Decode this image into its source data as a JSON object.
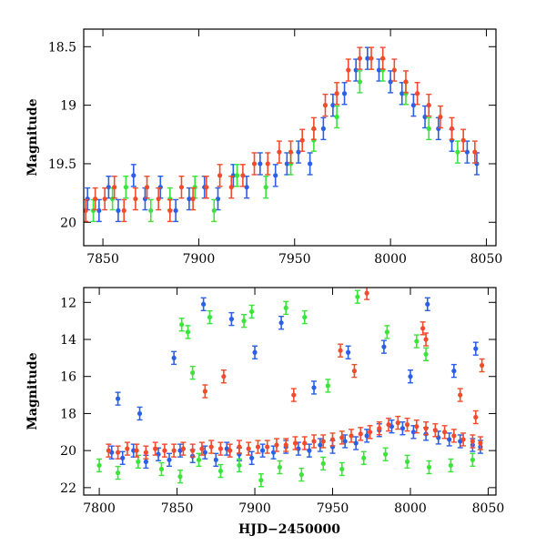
{
  "chart_data": [
    {
      "type": "scatter",
      "panel": "top",
      "xlabel": "",
      "ylabel": "Magnitude",
      "xlim": [
        7840,
        8055
      ],
      "ylim": [
        20.2,
        18.35
      ],
      "y_inverted": true,
      "x_ticks": [
        7850,
        7900,
        7950,
        8000,
        8050
      ],
      "y_ticks": [
        18.5,
        19,
        19.5,
        20
      ],
      "x_tick_labels": [
        "7850",
        "7900",
        "7950",
        "8000",
        "8050"
      ],
      "y_tick_labels": [
        "18.5",
        "19",
        "19.5",
        "20"
      ],
      "error_bars": true,
      "series": [
        {
          "color": "#2a5fe6",
          "x": [
            7842,
            7848,
            7853,
            7858,
            7866,
            7872,
            7880,
            7888,
            7895,
            7903,
            7910,
            7918,
            7925,
            7932,
            7940,
            7946,
            7952,
            7958,
            7965,
            7970,
            7976,
            7982,
            7988,
            7994,
            8000,
            8006,
            8012,
            8018,
            8025,
            8032,
            8040,
            8045
          ],
          "y": [
            19.8,
            19.9,
            19.7,
            19.9,
            19.6,
            19.8,
            19.7,
            19.9,
            19.8,
            19.7,
            19.8,
            19.6,
            19.7,
            19.5,
            19.6,
            19.5,
            19.4,
            19.5,
            19.2,
            19.0,
            18.9,
            18.7,
            18.6,
            18.7,
            18.8,
            18.9,
            19.0,
            19.1,
            19.2,
            19.3,
            19.4,
            19.5
          ]
        },
        {
          "color": "#3be33b",
          "x": [
            7845,
            7855,
            7862,
            7875,
            7885,
            7898,
            7908,
            7920,
            7935,
            7948,
            7960,
            7972,
            7984,
            7996,
            8008,
            8020,
            8035
          ],
          "y": [
            19.9,
            19.8,
            19.7,
            19.9,
            19.8,
            19.7,
            19.9,
            19.6,
            19.7,
            19.5,
            19.3,
            19.1,
            18.8,
            18.7,
            18.9,
            19.2,
            19.4
          ]
        },
        {
          "color": "#f24a2c",
          "x": [
            7841,
            7846,
            7851,
            7856,
            7861,
            7867,
            7873,
            7879,
            7885,
            7891,
            7897,
            7904,
            7911,
            7917,
            7923,
            7929,
            7936,
            7942,
            7948,
            7954,
            7960,
            7966,
            7972,
            7978,
            7984,
            7990,
            7996,
            8002,
            8008,
            8014,
            8020,
            8026,
            8032,
            8038,
            8044
          ],
          "y": [
            19.9,
            19.8,
            19.8,
            19.7,
            19.9,
            19.8,
            19.7,
            19.8,
            19.9,
            19.7,
            19.8,
            19.7,
            19.6,
            19.7,
            19.6,
            19.5,
            19.5,
            19.4,
            19.4,
            19.3,
            19.2,
            19.0,
            18.9,
            18.7,
            18.6,
            18.6,
            18.6,
            18.7,
            18.8,
            18.9,
            19.0,
            19.1,
            19.2,
            19.3,
            19.4
          ]
        }
      ]
    },
    {
      "type": "scatter",
      "panel": "bottom",
      "xlabel": "HJD−2450000",
      "ylabel": "Magnitude",
      "xlim": [
        7790,
        8055
      ],
      "ylim": [
        22.4,
        11.2
      ],
      "y_inverted": true,
      "x_ticks": [
        7800,
        7850,
        7900,
        7950,
        8000,
        8050
      ],
      "y_ticks": [
        12,
        14,
        16,
        18,
        20,
        22
      ],
      "x_tick_labels": [
        "7800",
        "7850",
        "7900",
        "7950",
        "8000",
        "8050"
      ],
      "y_tick_labels": [
        "12",
        "14",
        "16",
        "18",
        "20",
        "22"
      ],
      "error_bars": true,
      "series": [
        {
          "color": "#2a5fe6",
          "x": [
            7808,
            7815,
            7822,
            7830,
            7838,
            7845,
            7852,
            7860,
            7868,
            7875,
            7882,
            7890,
            7898,
            7905,
            7912,
            7920,
            7928,
            7935,
            7942,
            7950,
            7958,
            7965,
            7972,
            7980,
            7988,
            7995,
            8002,
            8010,
            8018,
            8025,
            8032,
            8040,
            8045,
            7812,
            7826,
            7848,
            7867,
            7885,
            7900,
            7917,
            7938,
            7960,
            7983,
            8000,
            8011,
            8028,
            8042
          ],
          "y": [
            20.1,
            20.4,
            20.0,
            20.6,
            20.2,
            20.5,
            20.0,
            20.3,
            20.1,
            20.5,
            19.9,
            20.2,
            20.4,
            20.0,
            20.1,
            19.8,
            19.9,
            20.0,
            19.7,
            19.8,
            19.5,
            19.6,
            19.2,
            18.9,
            18.7,
            18.8,
            19.0,
            19.1,
            19.3,
            19.4,
            19.5,
            19.7,
            19.8,
            17.2,
            18.0,
            15.0,
            12.1,
            12.9,
            14.7,
            13.1,
            16.6,
            14.7,
            14.4,
            16.0,
            12.1,
            15.7,
            14.5
          ]
        },
        {
          "color": "#3be33b",
          "x": [
            7800,
            7812,
            7825,
            7840,
            7852,
            7864,
            7878,
            7890,
            7904,
            7916,
            7930,
            7944,
            7956,
            7970,
            7984,
            7998,
            8012,
            8026,
            8040,
            7853,
            7857,
            7871,
            7893,
            7898,
            7920,
            7932,
            7947,
            7966,
            7985,
            8004,
            8010,
            7860
          ],
          "y": [
            20.8,
            21.2,
            20.6,
            21.0,
            21.4,
            20.5,
            21.1,
            20.8,
            21.6,
            20.9,
            21.3,
            20.7,
            21.0,
            20.4,
            20.2,
            20.6,
            20.9,
            20.8,
            20.5,
            13.2,
            13.6,
            12.8,
            13.0,
            12.5,
            12.3,
            12.8,
            16.5,
            11.7,
            13.6,
            14.1,
            14.8,
            15.8
          ]
        },
        {
          "color": "#f24a2c",
          "x": [
            7806,
            7812,
            7818,
            7824,
            7830,
            7836,
            7842,
            7848,
            7854,
            7860,
            7866,
            7872,
            7878,
            7884,
            7890,
            7896,
            7902,
            7908,
            7914,
            7920,
            7926,
            7932,
            7938,
            7944,
            7950,
            7956,
            7962,
            7968,
            7974,
            7980,
            7986,
            7992,
            7998,
            8004,
            8010,
            8016,
            8022,
            8028,
            8034,
            8040,
            8045,
            7868,
            7880,
            7925,
            7955,
            7964,
            7972,
            8008,
            8010,
            8032,
            8042,
            8046
          ],
          "y": [
            20.0,
            20.1,
            19.9,
            20.0,
            20.1,
            19.9,
            20.0,
            20.0,
            19.9,
            20.0,
            19.9,
            19.8,
            19.9,
            20.0,
            19.8,
            19.9,
            19.8,
            19.8,
            19.7,
            19.7,
            19.6,
            19.6,
            19.5,
            19.5,
            19.4,
            19.3,
            19.2,
            19.1,
            19.0,
            18.8,
            18.6,
            18.5,
            18.6,
            18.7,
            18.8,
            18.9,
            19.0,
            19.2,
            19.4,
            19.5,
            19.6,
            16.8,
            16.0,
            17.0,
            14.6,
            15.7,
            11.5,
            13.4,
            14.0,
            17.0,
            18.2,
            15.4
          ]
        }
      ]
    }
  ]
}
